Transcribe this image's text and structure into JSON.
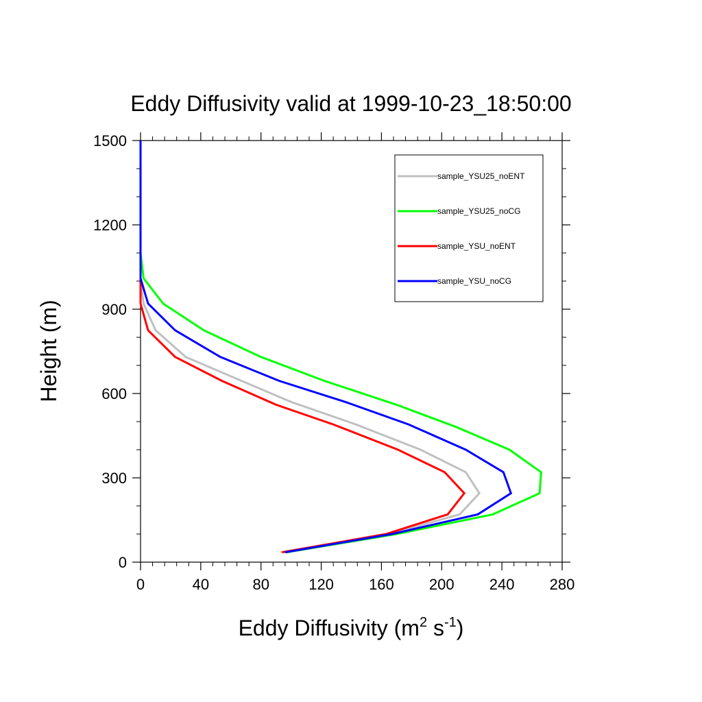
{
  "chart_data": {
    "type": "line",
    "title": "Eddy Diffusivity valid at 1999-10-23_18:50:00",
    "xlabel": "Eddy Diffusivity (m² s⁻¹)",
    "xlabel_main": "Eddy Diffusivity (m",
    "xlabel_sup1": "2",
    "xlabel_mid": " s",
    "xlabel_sup2": "-1",
    "xlabel_end": ")",
    "ylabel": "Height (m)",
    "xlim": [
      0,
      280
    ],
    "ylim": [
      0,
      1500
    ],
    "xticks": [
      0,
      40,
      80,
      120,
      160,
      200,
      240,
      280
    ],
    "yticks": [
      0,
      300,
      600,
      900,
      1200,
      1500
    ],
    "grid": false,
    "legend_position": "top-right",
    "series": [
      {
        "name": "sample_YSU25_noENT",
        "color": "#c0c0c0",
        "points": [
          [
            93,
            35
          ],
          [
            165,
            100
          ],
          [
            212,
            170
          ],
          [
            225,
            245
          ],
          [
            216,
            320
          ],
          [
            186,
            400
          ],
          [
            143,
            490
          ],
          [
            100,
            570
          ],
          [
            67,
            645
          ],
          [
            30,
            730
          ],
          [
            10,
            825
          ],
          [
            2,
            920
          ],
          [
            0,
            1010
          ],
          [
            0,
            1100
          ],
          [
            0,
            1500
          ]
        ]
      },
      {
        "name": "sample_YSU25_noCG",
        "color": "#00ff00",
        "points": [
          [
            97,
            35
          ],
          [
            170,
            100
          ],
          [
            234,
            170
          ],
          [
            265,
            245
          ],
          [
            266,
            320
          ],
          [
            245,
            400
          ],
          [
            210,
            480
          ],
          [
            170,
            560
          ],
          [
            122,
            645
          ],
          [
            80,
            730
          ],
          [
            42,
            825
          ],
          [
            15,
            920
          ],
          [
            2,
            1010
          ],
          [
            0,
            1100
          ],
          [
            0,
            1500
          ]
        ]
      },
      {
        "name": "sample_YSU_noENT",
        "color": "#ff0000",
        "points": [
          [
            94,
            35
          ],
          [
            163,
            100
          ],
          [
            204,
            170
          ],
          [
            215,
            245
          ],
          [
            202,
            320
          ],
          [
            171,
            400
          ],
          [
            128,
            490
          ],
          [
            90,
            560
          ],
          [
            54,
            645
          ],
          [
            23,
            730
          ],
          [
            5,
            825
          ],
          [
            0,
            920
          ],
          [
            0,
            1010
          ],
          [
            0,
            1500
          ]
        ]
      },
      {
        "name": "sample_YSU_noCG",
        "color": "#0000ff",
        "points": [
          [
            96,
            35
          ],
          [
            167,
            100
          ],
          [
            224,
            170
          ],
          [
            246,
            245
          ],
          [
            241,
            320
          ],
          [
            216,
            400
          ],
          [
            178,
            490
          ],
          [
            136,
            570
          ],
          [
            92,
            645
          ],
          [
            53,
            730
          ],
          [
            23,
            825
          ],
          [
            5,
            920
          ],
          [
            0,
            1010
          ],
          [
            0,
            1500
          ]
        ]
      }
    ]
  }
}
